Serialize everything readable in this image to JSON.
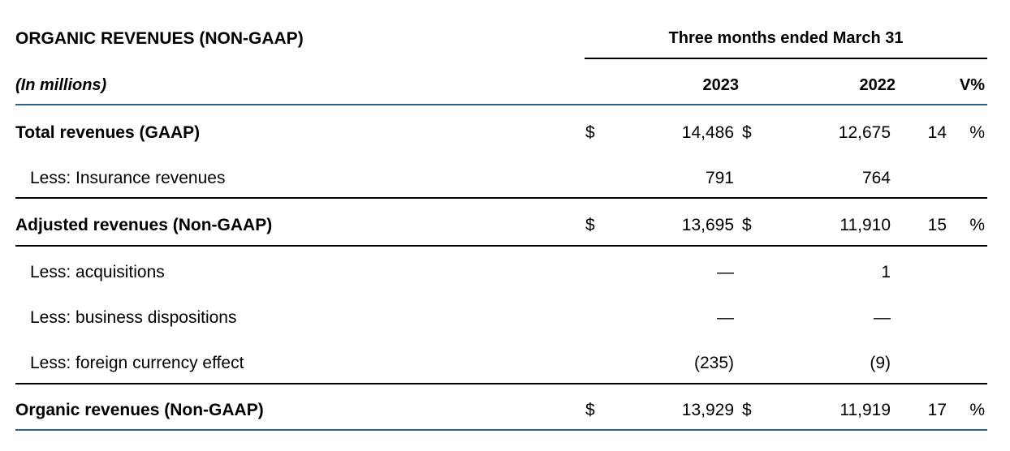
{
  "header": {
    "title": "ORGANIC REVENUES (NON-GAAP)",
    "period": "Three months ended March 31",
    "units": "(In millions)",
    "col_2023": "2023",
    "col_2022": "2022",
    "col_var": "V%"
  },
  "rows": [
    {
      "label": "Total revenues (GAAP)",
      "cur1": "$",
      "v2023": "14,486",
      "cur2": "$",
      "v2022": "12,675",
      "var": "14",
      "pct": "%"
    },
    {
      "label": "Less: Insurance revenues",
      "v2023": "791",
      "v2022": "764"
    },
    {
      "label": "Adjusted revenues (Non-GAAP)",
      "cur1": "$",
      "v2023": "13,695",
      "cur2": "$",
      "v2022": "11,910",
      "var": "15",
      "pct": "%"
    },
    {
      "label": "Less: acquisitions",
      "v2023": "—",
      "v2022": "1"
    },
    {
      "label": "Less: business dispositions",
      "v2023": "—",
      "v2022": "—"
    },
    {
      "label": "Less: foreign currency effect",
      "v2023": "(235)",
      "v2022": "(9)"
    },
    {
      "label": "Organic revenues (Non-GAAP)",
      "cur1": "$",
      "v2023": "13,929",
      "cur2": "$",
      "v2022": "11,919",
      "var": "17",
      "pct": "%"
    }
  ]
}
